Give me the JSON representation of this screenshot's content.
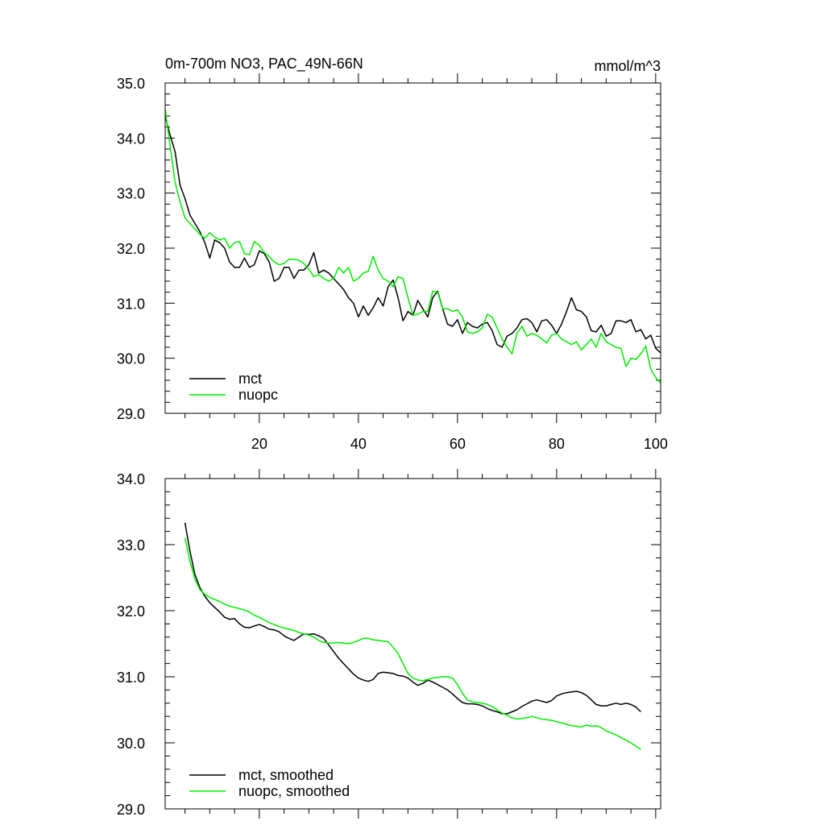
{
  "chart_data": [
    {
      "type": "line",
      "title": "0m-700m NO3, PAC_49N-66N",
      "units": "mmol/m^3",
      "xlim": [
        1,
        101
      ],
      "ylim": [
        29.0,
        35.0
      ],
      "xticks": [
        20,
        40,
        60,
        80,
        100
      ],
      "xtick_labels": [
        "20",
        "40",
        "60",
        "80",
        "100"
      ],
      "yticks": [
        29.0,
        30.0,
        31.0,
        32.0,
        33.0,
        34.0,
        35.0
      ],
      "ytick_labels": [
        "29.0",
        "30.0",
        "31.0",
        "32.0",
        "33.0",
        "34.0",
        "35.0"
      ],
      "legend_position": "bottom-left",
      "series": [
        {
          "name": "mct",
          "color": "#000000",
          "x": [
            1,
            2,
            3,
            4,
            5,
            6,
            7,
            8,
            9,
            10,
            11,
            12,
            13,
            14,
            15,
            16,
            17,
            18,
            19,
            20,
            21,
            22,
            23,
            24,
            25,
            26,
            27,
            28,
            29,
            30,
            31,
            32,
            33,
            34,
            35,
            36,
            37,
            38,
            39,
            40,
            41,
            42,
            43,
            44,
            45,
            46,
            47,
            48,
            49,
            50,
            51,
            52,
            53,
            54,
            55,
            56,
            57,
            58,
            59,
            60,
            61,
            62,
            63,
            64,
            65,
            66,
            67,
            68,
            69,
            70,
            71,
            72,
            73,
            74,
            75,
            76,
            77,
            78,
            79,
            80,
            81,
            82,
            83,
            84,
            85,
            86,
            87,
            88,
            89,
            90,
            91,
            92,
            93,
            94,
            95,
            96,
            97,
            98,
            99,
            100,
            101
          ],
          "values": [
            34.4,
            34.05,
            33.75,
            33.15,
            32.9,
            32.6,
            32.45,
            32.3,
            32.1,
            31.82,
            32.15,
            32.1,
            32.0,
            31.75,
            31.65,
            31.65,
            31.82,
            31.65,
            31.7,
            31.95,
            31.9,
            31.75,
            31.4,
            31.45,
            31.65,
            31.65,
            31.45,
            31.6,
            31.6,
            31.7,
            31.92,
            31.55,
            31.6,
            31.55,
            31.45,
            31.35,
            31.25,
            31.1,
            31.0,
            30.75,
            30.95,
            30.78,
            30.92,
            31.1,
            30.95,
            31.3,
            31.42,
            31.1,
            30.68,
            30.85,
            30.78,
            31.05,
            30.9,
            30.75,
            31.1,
            31.22,
            30.9,
            30.62,
            30.58,
            30.7,
            30.45,
            30.65,
            30.58,
            30.55,
            30.62,
            30.65,
            30.5,
            30.25,
            30.2,
            30.4,
            30.45,
            30.55,
            30.7,
            30.72,
            30.65,
            30.48,
            30.68,
            30.7,
            30.6,
            30.45,
            30.62,
            30.85,
            31.1,
            30.88,
            30.85,
            30.75,
            30.5,
            30.48,
            30.6,
            30.4,
            30.45,
            30.68,
            30.68,
            30.65,
            30.7,
            30.48,
            30.52,
            30.35,
            30.42,
            30.18,
            30.1
          ]
        },
        {
          "name": "nuopc",
          "color": "#00ee00",
          "x": [
            1,
            2,
            3,
            4,
            5,
            6,
            7,
            8,
            9,
            10,
            11,
            12,
            13,
            14,
            15,
            16,
            17,
            18,
            19,
            20,
            21,
            22,
            23,
            24,
            25,
            26,
            27,
            28,
            29,
            30,
            31,
            32,
            33,
            34,
            35,
            36,
            37,
            38,
            39,
            40,
            41,
            42,
            43,
            44,
            45,
            46,
            47,
            48,
            49,
            50,
            51,
            52,
            53,
            54,
            55,
            56,
            57,
            58,
            59,
            60,
            61,
            62,
            63,
            64,
            65,
            66,
            67,
            68,
            69,
            70,
            71,
            72,
            73,
            74,
            75,
            76,
            77,
            78,
            79,
            80,
            81,
            82,
            83,
            84,
            85,
            86,
            87,
            88,
            89,
            90,
            91,
            92,
            93,
            94,
            95,
            96,
            97,
            98,
            99,
            100,
            101
          ],
          "values": [
            34.52,
            33.85,
            33.2,
            32.85,
            32.55,
            32.45,
            32.35,
            32.25,
            32.18,
            32.28,
            32.2,
            32.15,
            32.18,
            32.0,
            32.1,
            32.12,
            31.9,
            31.88,
            32.12,
            32.05,
            31.92,
            31.85,
            31.75,
            31.7,
            31.72,
            31.8,
            31.8,
            31.78,
            31.72,
            31.62,
            31.48,
            31.52,
            31.45,
            31.4,
            31.45,
            31.65,
            31.55,
            31.65,
            31.4,
            31.45,
            31.55,
            31.58,
            31.85,
            31.6,
            31.45,
            31.4,
            31.3,
            31.48,
            31.45,
            31.1,
            30.78,
            30.8,
            30.85,
            30.85,
            31.22,
            31.2,
            30.9,
            30.9,
            30.85,
            30.88,
            30.75,
            30.48,
            30.45,
            30.48,
            30.55,
            30.8,
            30.75,
            30.55,
            30.35,
            30.2,
            30.08,
            30.45,
            30.58,
            30.4,
            30.45,
            30.42,
            30.35,
            30.28,
            30.42,
            30.45,
            30.35,
            30.3,
            30.25,
            30.3,
            30.15,
            30.25,
            30.35,
            30.2,
            30.45,
            30.3,
            30.25,
            30.2,
            30.18,
            29.85,
            30.0,
            29.98,
            30.08,
            30.22,
            29.8,
            29.65,
            29.55
          ]
        }
      ]
    },
    {
      "type": "line",
      "title": "",
      "xlim": [
        1,
        101
      ],
      "ylim": [
        29.0,
        34.0
      ],
      "yticks": [
        29.0,
        30.0,
        31.0,
        32.0,
        33.0,
        34.0
      ],
      "ytick_labels": [
        "29.0",
        "30.0",
        "31.0",
        "32.0",
        "33.0",
        "34.0"
      ],
      "legend_position": "bottom-left",
      "series": [
        {
          "name": "mct, smoothed",
          "color": "#000000",
          "x": [
            5,
            6,
            7,
            8,
            9,
            10,
            11,
            12,
            13,
            14,
            15,
            16,
            17,
            18,
            19,
            20,
            21,
            22,
            23,
            24,
            25,
            26,
            27,
            28,
            29,
            30,
            31,
            32,
            33,
            34,
            35,
            36,
            37,
            38,
            39,
            40,
            41,
            42,
            43,
            44,
            45,
            46,
            47,
            48,
            49,
            50,
            51,
            52,
            53,
            54,
            55,
            56,
            57,
            58,
            59,
            60,
            61,
            62,
            63,
            64,
            65,
            66,
            67,
            68,
            69,
            70,
            71,
            72,
            73,
            74,
            75,
            76,
            77,
            78,
            79,
            80,
            81,
            82,
            83,
            84,
            85,
            86,
            87,
            88,
            89,
            90,
            91,
            92,
            93,
            94,
            95,
            96,
            97
          ],
          "values": [
            33.33,
            32.9,
            32.55,
            32.35,
            32.22,
            32.12,
            32.05,
            31.98,
            31.9,
            31.87,
            31.88,
            31.8,
            31.75,
            31.74,
            31.77,
            31.79,
            31.76,
            31.72,
            31.71,
            31.68,
            31.62,
            31.58,
            31.55,
            31.6,
            31.65,
            31.64,
            31.65,
            31.62,
            31.58,
            31.48,
            31.38,
            31.28,
            31.2,
            31.12,
            31.04,
            30.98,
            30.95,
            30.93,
            30.96,
            31.05,
            31.07,
            31.06,
            31.05,
            31.02,
            31.01,
            30.98,
            30.92,
            30.87,
            30.9,
            30.95,
            30.92,
            30.88,
            30.84,
            30.8,
            30.74,
            30.67,
            30.61,
            30.59,
            30.59,
            30.58,
            30.56,
            30.52,
            30.49,
            30.47,
            30.44,
            30.44,
            30.47,
            30.5,
            30.55,
            30.59,
            30.63,
            30.65,
            30.63,
            30.61,
            30.64,
            30.71,
            30.74,
            30.76,
            30.77,
            30.78,
            30.76,
            30.72,
            30.65,
            30.58,
            30.56,
            30.56,
            30.58,
            30.6,
            30.58,
            30.6,
            30.58,
            30.54,
            30.47
          ]
        },
        {
          "name": "nuopc, smoothed",
          "color": "#00ee00",
          "x": [
            5,
            6,
            7,
            8,
            9,
            10,
            11,
            12,
            13,
            14,
            15,
            16,
            17,
            18,
            19,
            20,
            21,
            22,
            23,
            24,
            25,
            26,
            27,
            28,
            29,
            30,
            31,
            32,
            33,
            34,
            35,
            36,
            37,
            38,
            39,
            40,
            41,
            42,
            43,
            44,
            45,
            46,
            47,
            48,
            49,
            50,
            51,
            52,
            53,
            54,
            55,
            56,
            57,
            58,
            59,
            60,
            61,
            62,
            63,
            64,
            65,
            66,
            67,
            68,
            69,
            70,
            71,
            72,
            73,
            74,
            75,
            76,
            77,
            78,
            79,
            80,
            81,
            82,
            83,
            84,
            85,
            86,
            87,
            88,
            89,
            90,
            91,
            92,
            93,
            94,
            95,
            96,
            97
          ],
          "values": [
            33.1,
            32.75,
            32.48,
            32.32,
            32.25,
            32.2,
            32.17,
            32.14,
            32.1,
            32.07,
            32.05,
            32.03,
            32.01,
            31.98,
            31.93,
            31.9,
            31.86,
            31.82,
            31.79,
            31.76,
            31.74,
            31.72,
            31.7,
            31.67,
            31.65,
            31.63,
            31.6,
            31.55,
            31.52,
            31.51,
            31.51,
            31.52,
            31.51,
            31.5,
            31.52,
            31.55,
            31.58,
            31.58,
            31.56,
            31.55,
            31.54,
            31.53,
            31.45,
            31.35,
            31.2,
            31.05,
            30.98,
            30.95,
            30.94,
            30.96,
            30.98,
            30.99,
            31.0,
            31.0,
            30.98,
            30.88,
            30.75,
            30.65,
            30.62,
            30.61,
            30.6,
            30.58,
            30.55,
            30.5,
            30.45,
            30.42,
            30.38,
            30.36,
            30.37,
            30.38,
            30.4,
            30.38,
            30.36,
            30.35,
            30.34,
            30.32,
            30.3,
            30.28,
            30.26,
            30.25,
            30.24,
            30.27,
            30.25,
            30.26,
            30.23,
            30.18,
            30.15,
            30.12,
            30.08,
            30.04,
            30.0,
            29.95,
            29.9
          ]
        }
      ]
    }
  ]
}
